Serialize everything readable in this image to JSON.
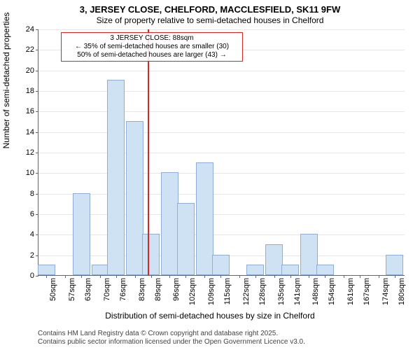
{
  "title_line1": "3, JERSEY CLOSE, CHELFORD, MACCLESFIELD, SK11 9FW",
  "title_line2": "Size of property relative to semi-detached houses in Chelford",
  "ylabel": "Number of semi-detached properties",
  "xlabel": "Distribution of semi-detached houses by size in Chelford",
  "footer_line1": "Contains HM Land Registry data © Crown copyright and database right 2025.",
  "footer_line2": "Contains public sector information licensed under the Open Government Licence v3.0.",
  "chart": {
    "type": "histogram",
    "ylim": [
      0,
      24
    ],
    "ytick_step": 2,
    "xlim": [
      47,
      184
    ],
    "xticks": [
      50,
      57,
      63,
      70,
      76,
      83,
      89,
      96,
      102,
      109,
      115,
      122,
      128,
      135,
      141,
      148,
      154,
      161,
      167,
      174,
      180
    ],
    "xtick_suffix": "sqm",
    "bin_width": 6.5,
    "bars": [
      {
        "x": 50,
        "y": 1
      },
      {
        "x": 57,
        "y": 0
      },
      {
        "x": 63,
        "y": 8
      },
      {
        "x": 70,
        "y": 1
      },
      {
        "x": 76,
        "y": 19
      },
      {
        "x": 83,
        "y": 15
      },
      {
        "x": 89,
        "y": 4
      },
      {
        "x": 96,
        "y": 10
      },
      {
        "x": 102,
        "y": 7
      },
      {
        "x": 109,
        "y": 11
      },
      {
        "x": 115,
        "y": 2
      },
      {
        "x": 122,
        "y": 0
      },
      {
        "x": 128,
        "y": 1
      },
      {
        "x": 135,
        "y": 3
      },
      {
        "x": 141,
        "y": 1
      },
      {
        "x": 148,
        "y": 4
      },
      {
        "x": 154,
        "y": 1
      },
      {
        "x": 161,
        "y": 0
      },
      {
        "x": 167,
        "y": 0
      },
      {
        "x": 174,
        "y": 0
      },
      {
        "x": 180,
        "y": 2
      }
    ],
    "bar_fill": "#cfe2f3",
    "bar_border": "#8faed3",
    "grid_color": "#e6e6e6",
    "background": "#ffffff",
    "vline_x": 88,
    "vline_color": "#d62728",
    "label_fontsize": 12,
    "tick_fontsize": 11
  },
  "annotation": {
    "line1": "3 JERSEY CLOSE: 88sqm",
    "line2": "← 35% of semi-detached houses are smaller (30)",
    "line3": "50% of semi-detached houses are larger (43) →",
    "border_color": "#d62728",
    "x": 88,
    "y_top": 24
  }
}
